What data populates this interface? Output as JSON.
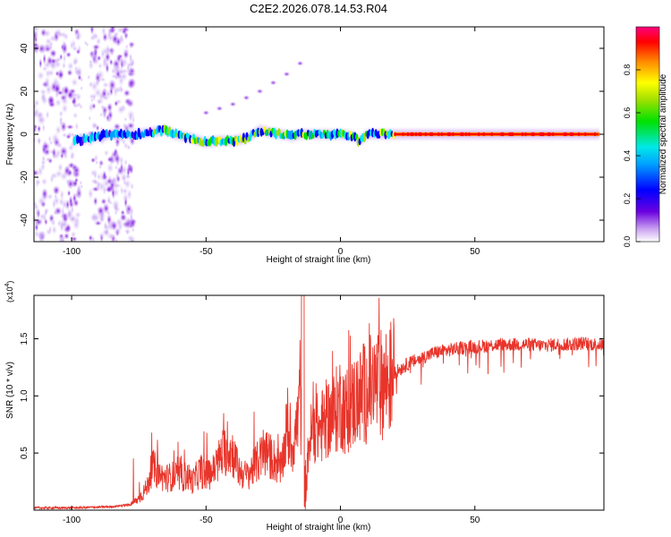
{
  "title": "C2E2.2026.078.14.53.R04",
  "chart_data": [
    {
      "type": "heatmap",
      "title": "C2E2.2026.078.14.53.R04",
      "xlabel": "Height of straight line (km)",
      "ylabel": "Frequency (Hz)",
      "xlim": [
        -114,
        98
      ],
      "ylim": [
        -50,
        50
      ],
      "xticks": [
        -100,
        -50,
        0,
        50
      ],
      "yticks": [
        -40,
        -20,
        0,
        20,
        40
      ],
      "xtick_labels": [
        "-100",
        "-50",
        "0",
        "50"
      ],
      "ytick_labels": [
        "-40",
        "-20",
        "0",
        "20",
        "40"
      ],
      "colorbar": {
        "label": "Normalized spectral amplitude",
        "range": [
          0,
          1
        ],
        "ticks": [
          0.0,
          0.2,
          0.4,
          0.6,
          0.8
        ],
        "tick_labels": [
          "0.0",
          "0.2",
          "0.4",
          "0.6",
          "0.8"
        ],
        "colormap": "rainbow (white-purple-blue-cyan-green-yellow-orange-red-magenta)"
      },
      "features": [
        {
          "name": "noise-band-left",
          "x_range": [
            -114,
            -97
          ],
          "y_range": [
            -50,
            50
          ],
          "amplitude": 0.1
        },
        {
          "name": "noise-band-middle",
          "x_range": [
            -93,
            -77
          ],
          "y_range": [
            -50,
            50
          ],
          "amplitude": 0.1
        },
        {
          "name": "signal-trace",
          "points": [
            [
              -99,
              -3
            ],
            [
              -95,
              -2
            ],
            [
              -90,
              -1
            ],
            [
              -85,
              0
            ],
            [
              -80,
              0
            ],
            [
              -75,
              0
            ],
            [
              -70,
              1
            ],
            [
              -65,
              2
            ],
            [
              -62,
              0
            ],
            [
              -58,
              -1
            ],
            [
              -55,
              -2
            ],
            [
              -50,
              -4
            ],
            [
              -45,
              -3
            ],
            [
              -40,
              -3
            ],
            [
              -35,
              -2
            ],
            [
              -30,
              2
            ],
            [
              -27,
              1
            ],
            [
              -22,
              0
            ],
            [
              -18,
              -1
            ],
            [
              -15,
              0
            ],
            [
              -12,
              0
            ],
            [
              -5,
              0
            ],
            [
              0,
              0
            ],
            [
              5,
              -1
            ],
            [
              7,
              -3
            ],
            [
              10,
              0
            ],
            [
              20,
              0
            ],
            [
              30,
              0
            ],
            [
              40,
              0
            ],
            [
              50,
              0
            ],
            [
              60,
              0
            ],
            [
              70,
              0
            ],
            [
              80,
              0
            ],
            [
              90,
              0
            ],
            [
              96,
              0
            ]
          ]
        },
        {
          "name": "strong-carrier",
          "x_range": [
            20,
            96
          ],
          "frequency": 0,
          "amplitude": 0.95
        },
        {
          "name": "diagonal-streak",
          "points": [
            [
              -50,
              10
            ],
            [
              -45,
              12
            ],
            [
              -40,
              14
            ],
            [
              -35,
              17
            ],
            [
              -30,
              20
            ],
            [
              -25,
              24
            ],
            [
              -20,
              28
            ],
            [
              -15,
              33
            ]
          ]
        }
      ]
    },
    {
      "type": "line",
      "xlabel": "Height of straight line (km)",
      "ylabel": "SNR (10 * v/v)",
      "exponent_label": "(x10",
      "exponent_value": "4",
      "exponent_close": ")",
      "xlim": [
        -114,
        98
      ],
      "ylim": [
        0,
        1.88
      ],
      "xticks": [
        -100,
        -50,
        0,
        50
      ],
      "yticks": [
        0.5,
        1.0,
        1.5
      ],
      "xtick_labels": [
        "-100",
        "-50",
        "0",
        "50"
      ],
      "ytick_labels": [
        "0.5",
        "1.0",
        "1.5"
      ],
      "color": "#e8352b",
      "series": [
        {
          "name": "SNR",
          "x": [
            -114,
            -100,
            -85,
            -78,
            -75,
            -72,
            -70,
            -67,
            -65,
            -62,
            -60,
            -57,
            -55,
            -52,
            -50,
            -47,
            -45,
            -42,
            -40,
            -38,
            -35,
            -32,
            -30,
            -28,
            -25,
            -22,
            -20,
            -18,
            -16,
            -15,
            -14,
            -13,
            -12,
            -10,
            -8,
            -5,
            -2,
            0,
            2,
            5,
            8,
            10,
            13,
            15,
            18,
            20,
            25,
            30,
            35,
            40,
            45,
            50,
            55,
            60,
            65,
            70,
            75,
            80,
            85,
            90,
            95,
            98
          ],
          "y": [
            0.02,
            0.02,
            0.03,
            0.05,
            0.1,
            0.2,
            0.38,
            0.3,
            0.28,
            0.3,
            0.28,
            0.3,
            0.25,
            0.35,
            0.3,
            0.35,
            0.45,
            0.55,
            0.5,
            0.35,
            0.3,
            0.38,
            0.45,
            0.5,
            0.45,
            0.35,
            0.7,
            0.55,
            0.75,
            1.1,
            0.1,
            0.0,
            0.55,
            0.75,
            0.7,
            0.8,
            0.85,
            0.95,
            0.85,
            0.95,
            1.0,
            1.05,
            1.1,
            1.1,
            1.15,
            1.2,
            1.28,
            1.33,
            1.38,
            1.4,
            1.42,
            1.43,
            1.44,
            1.45,
            1.45,
            1.45,
            1.44,
            1.45,
            1.45,
            1.46,
            1.45,
            1.45
          ]
        }
      ]
    }
  ]
}
